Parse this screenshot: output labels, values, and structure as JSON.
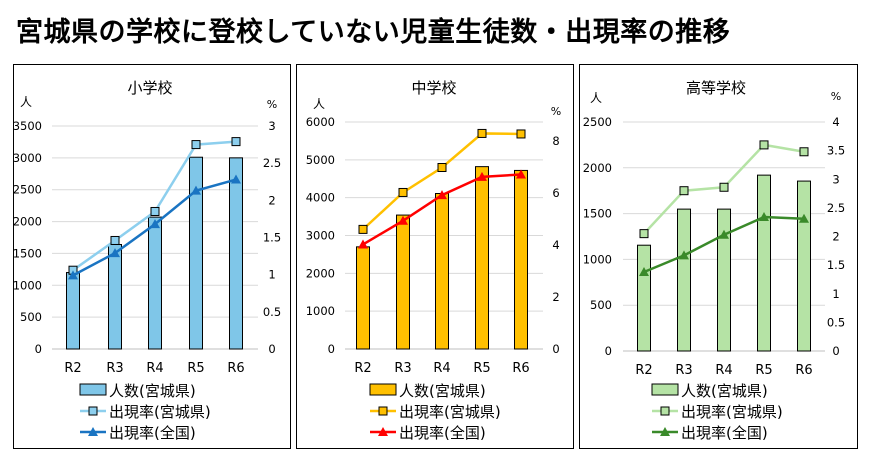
{
  "title": "宮城県の学校に登校していない児童生徒数・出現率の推移",
  "chart_data": [
    {
      "type": "bar+line",
      "title": "小学校",
      "ylabel": "人",
      "y2label": "%",
      "categories": [
        "R2",
        "R3",
        "R4",
        "R5",
        "R6"
      ],
      "ylim": [
        0,
        3500
      ],
      "yticks": [
        0,
        500,
        1000,
        1500,
        2000,
        2500,
        3000,
        3500
      ],
      "y2lim": [
        0,
        3
      ],
      "y2ticks": [
        0,
        0.5,
        1,
        1.5,
        2,
        2.5,
        3
      ],
      "grid": true,
      "legend_position": "bottom",
      "series": [
        {
          "name": "人数(宮城県)",
          "kind": "bar",
          "axis": "left",
          "color": "#7FC6E8",
          "values": [
            1200,
            1640,
            2070,
            3010,
            3000
          ]
        },
        {
          "name": "出現率(宮城県)",
          "kind": "line",
          "marker": "square",
          "axis": "right",
          "color": "#8DCFEE",
          "values": [
            1.06,
            1.46,
            1.85,
            2.75,
            2.79
          ]
        },
        {
          "name": "出現率(全国)",
          "kind": "line",
          "marker": "triangle",
          "axis": "right",
          "color": "#1A74C2",
          "values": [
            0.99,
            1.29,
            1.68,
            2.13,
            2.28
          ]
        }
      ]
    },
    {
      "type": "bar+line",
      "title": "中学校",
      "ylabel": "人",
      "y2label": "%",
      "categories": [
        "R2",
        "R3",
        "R4",
        "R5",
        "R6"
      ],
      "ylim": [
        0,
        6000
      ],
      "yticks": [
        0,
        1000,
        2000,
        3000,
        4000,
        5000,
        6000
      ],
      "y2lim": [
        0,
        8.73
      ],
      "y2ticks": [
        0,
        2,
        4,
        6,
        8
      ],
      "grid": true,
      "legend_position": "bottom",
      "series": [
        {
          "name": "人数(宮城県)",
          "kind": "bar",
          "axis": "left",
          "color": "#FFC000",
          "values": [
            2700,
            3540,
            4110,
            4820,
            4720
          ]
        },
        {
          "name": "出現率(宮城県)",
          "kind": "line",
          "marker": "square",
          "axis": "right",
          "color": "#FFC000",
          "values": [
            4.6,
            6.02,
            6.98,
            8.29,
            8.27
          ]
        },
        {
          "name": "出現率(全国)",
          "kind": "line",
          "marker": "triangle",
          "axis": "right",
          "color": "#FF0000",
          "values": [
            4.02,
            4.93,
            5.92,
            6.62,
            6.71
          ]
        }
      ]
    },
    {
      "type": "bar+line",
      "title": "高等学校",
      "ylabel": "人",
      "y2label": "%",
      "categories": [
        "R2",
        "R3",
        "R4",
        "R5",
        "R6"
      ],
      "ylim": [
        0,
        2500
      ],
      "yticks": [
        0,
        500,
        1000,
        1500,
        2000,
        2500
      ],
      "y2lim": [
        0,
        4
      ],
      "y2ticks": [
        0,
        0.5,
        1,
        1.5,
        2,
        2.5,
        3,
        3.5,
        4
      ],
      "grid": true,
      "legend_position": "bottom",
      "series": [
        {
          "name": "人数(宮城県)",
          "kind": "bar",
          "axis": "left",
          "color": "#B5E3A5",
          "values": [
            1155,
            1549,
            1549,
            1920,
            1855
          ]
        },
        {
          "name": "出現率(宮城県)",
          "kind": "line",
          "marker": "square",
          "axis": "right",
          "color": "#B5E3A5",
          "values": [
            2.05,
            2.8,
            2.86,
            3.6,
            3.48
          ]
        },
        {
          "name": "出現率(全国)",
          "kind": "line",
          "marker": "triangle",
          "axis": "right",
          "color": "#3A8A2A",
          "values": [
            1.38,
            1.67,
            2.03,
            2.34,
            2.31
          ]
        }
      ]
    }
  ]
}
